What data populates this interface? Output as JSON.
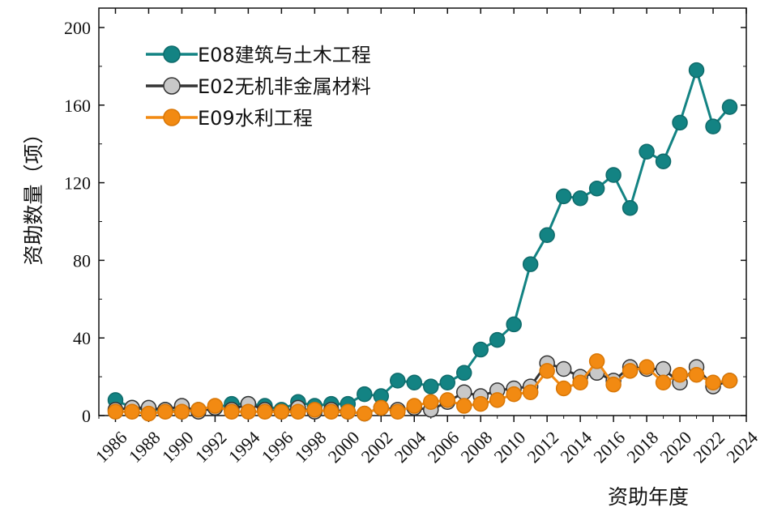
{
  "chart_data": {
    "type": "line",
    "xlabel": "资助年度",
    "ylabel": "资助数量（项）",
    "xlim": [
      1985,
      2024
    ],
    "ylim": [
      0,
      210
    ],
    "xticks": [
      1986,
      1988,
      1990,
      1992,
      1994,
      1996,
      1998,
      2000,
      2002,
      2004,
      2006,
      2008,
      2010,
      2012,
      2014,
      2016,
      2018,
      2020,
      2022,
      2024
    ],
    "yticks": [
      0,
      40,
      80,
      120,
      160,
      200
    ],
    "grid": false,
    "legend_position": "top-left",
    "series": [
      {
        "name": "E08建筑与土木工程",
        "color": "#138383",
        "marker_fill": "#138383",
        "marker_edge": "#0f6b6b",
        "x": [
          1986,
          1987,
          1988,
          1989,
          1990,
          1991,
          1992,
          1993,
          1994,
          1995,
          1996,
          1997,
          1998,
          1999,
          2000,
          2001,
          2002,
          2003,
          2004,
          2005,
          2006,
          2007,
          2008,
          2009,
          2010,
          2011,
          2012,
          2013,
          2014,
          2015,
          2016,
          2017,
          2018,
          2019,
          2020,
          2021,
          2022,
          2023
        ],
        "y": [
          8,
          4,
          3,
          3,
          2,
          3,
          4,
          6,
          6,
          5,
          3,
          7,
          5,
          6,
          6,
          11,
          10,
          18,
          17,
          15,
          17,
          22,
          34,
          39,
          47,
          78,
          93,
          113,
          112,
          117,
          124,
          107,
          136,
          131,
          151,
          178,
          149,
          159
        ]
      },
      {
        "name": "E02无机非金属材料",
        "color": "#333333",
        "marker_fill": "#c8c8c8",
        "marker_edge": "#333333",
        "x": [
          1986,
          1987,
          1988,
          1989,
          1990,
          1991,
          1992,
          1993,
          1994,
          1995,
          1996,
          1997,
          1998,
          1999,
          2000,
          2001,
          2002,
          2003,
          2004,
          2005,
          2006,
          2007,
          2008,
          2009,
          2010,
          2011,
          2012,
          2013,
          2014,
          2015,
          2016,
          2017,
          2018,
          2019,
          2020,
          2021,
          2022,
          2023
        ],
        "y": [
          3,
          4,
          4,
          3,
          5,
          2,
          4,
          3,
          6,
          3,
          2,
          4,
          2,
          3,
          2,
          1,
          4,
          3,
          4,
          3,
          7,
          12,
          10,
          13,
          14,
          15,
          27,
          24,
          20,
          22,
          18,
          25,
          24,
          24,
          17,
          25,
          15,
          18
        ]
      },
      {
        "name": "E09水利工程",
        "color": "#f28a12",
        "marker_fill": "#f28a12",
        "marker_edge": "#d97706",
        "x": [
          1986,
          1987,
          1988,
          1989,
          1990,
          1991,
          1992,
          1993,
          1994,
          1995,
          1996,
          1997,
          1998,
          1999,
          2000,
          2001,
          2002,
          2003,
          2004,
          2005,
          2006,
          2007,
          2008,
          2009,
          2010,
          2011,
          2012,
          2013,
          2014,
          2015,
          2016,
          2017,
          2018,
          2019,
          2020,
          2021,
          2022,
          2023
        ],
        "y": [
          2,
          2,
          1,
          2,
          2,
          3,
          5,
          2,
          2,
          2,
          2,
          2,
          3,
          2,
          2,
          1,
          4,
          2,
          5,
          7,
          8,
          5,
          6,
          8,
          11,
          12,
          23,
          14,
          17,
          28,
          16,
          23,
          25,
          17,
          21,
          21,
          17,
          18
        ]
      }
    ]
  }
}
